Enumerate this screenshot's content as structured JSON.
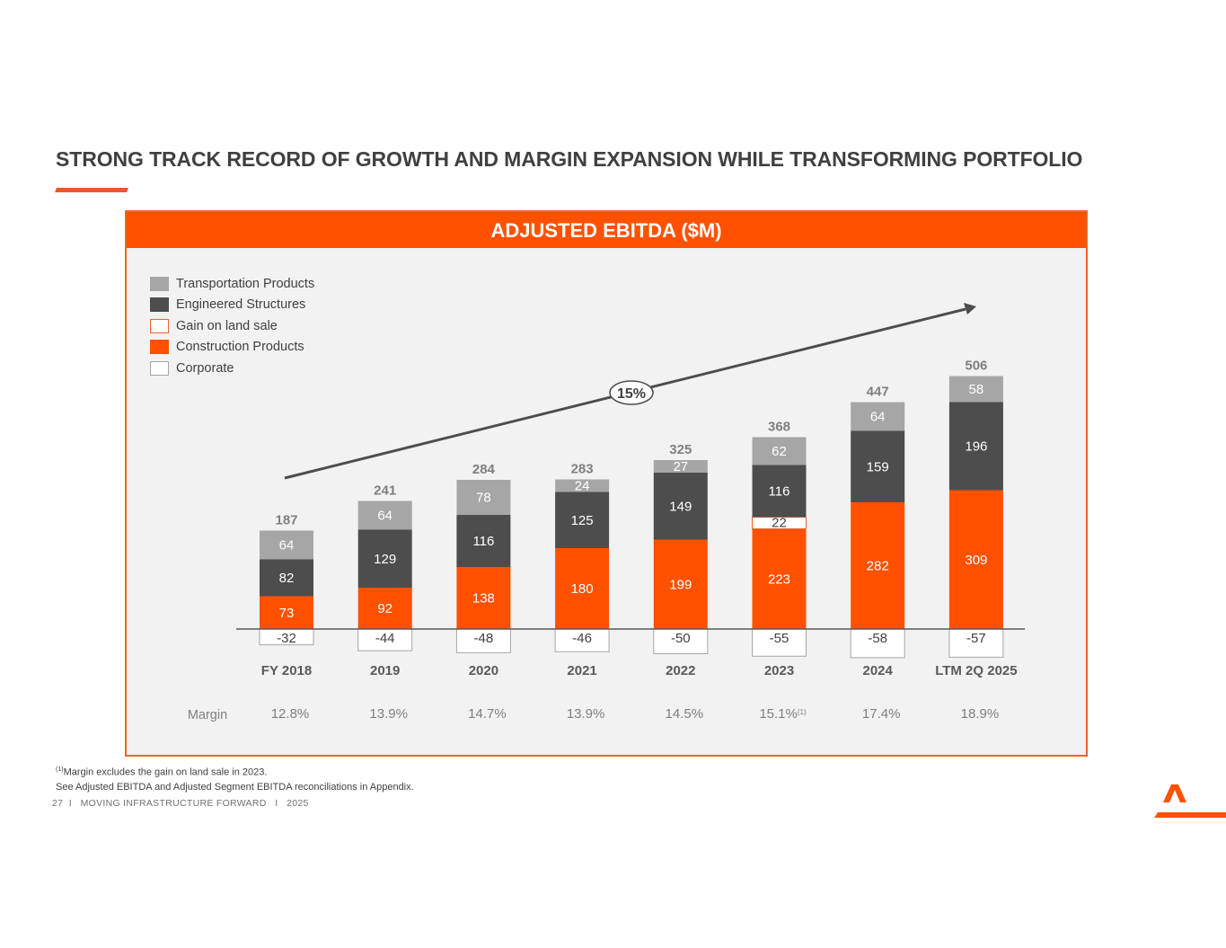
{
  "title": "STRONG TRACK RECORD OF GROWTH AND MARGIN EXPANSION WHILE TRANSFORMING PORTFOLIO",
  "panel_title": "ADJUSTED EBITDA ($M)",
  "colors": {
    "accent": "#ff5100",
    "transportation": "#a6a6a6",
    "engineered": "#4d4d4d",
    "construction": "#ff5100",
    "gain_border": "#f2622a",
    "corporate_border": "#a6a6a6"
  },
  "legend": [
    {
      "label": "Transportation Products",
      "key": "transportation"
    },
    {
      "label": "Engineered Structures",
      "key": "engineered"
    },
    {
      "label": "Gain on land sale",
      "key": "gain"
    },
    {
      "label": "Construction Products",
      "key": "construction"
    },
    {
      "label": "Corporate",
      "key": "corporate"
    }
  ],
  "chart_data": {
    "type": "bar",
    "stacked": true,
    "title": "ADJUSTED EBITDA ($M)",
    "categories": [
      "FY 2018",
      "2019",
      "2020",
      "2021",
      "2022",
      "2023",
      "2024",
      "LTM 2Q 2025"
    ],
    "series": [
      {
        "name": "Construction Products",
        "key": "construction",
        "values": [
          73,
          92,
          138,
          180,
          199,
          223,
          282,
          309
        ]
      },
      {
        "name": "Gain on land sale",
        "key": "gain",
        "values": [
          0,
          0,
          0,
          0,
          0,
          22,
          0,
          0
        ]
      },
      {
        "name": "Engineered Structures",
        "key": "engineered",
        "values": [
          82,
          129,
          116,
          125,
          149,
          116,
          159,
          196
        ]
      },
      {
        "name": "Transportation Products",
        "key": "transportation",
        "values": [
          64,
          64,
          78,
          24,
          27,
          62,
          64,
          58
        ]
      },
      {
        "name": "Corporate",
        "key": "corporate",
        "values": [
          -32,
          -44,
          -48,
          -46,
          -50,
          -55,
          -58,
          -57
        ]
      }
    ],
    "totals": [
      187,
      241,
      284,
      283,
      325,
      368,
      447,
      506
    ],
    "margin_label": "Margin",
    "margins": [
      "12.8%",
      "13.9%",
      "14.7%",
      "13.9%",
      "14.5%",
      "15.1%",
      "17.4%",
      "18.9%"
    ],
    "margin_footnote_marks": [
      "",
      "",
      "",
      "",
      "",
      "(1)",
      "",
      ""
    ],
    "cagr_label": "15%",
    "ylim": [
      -60,
      540
    ]
  },
  "footnote": {
    "mark": "(1)",
    "line1": "Margin excludes the gain on land sale in 2023.",
    "line2": "See Adjusted EBITDA and Adjusted Segment EBITDA reconciliations in Appendix."
  },
  "footer": "27  I   MOVING INFRASTRUCTURE FORWARD   I   2025"
}
